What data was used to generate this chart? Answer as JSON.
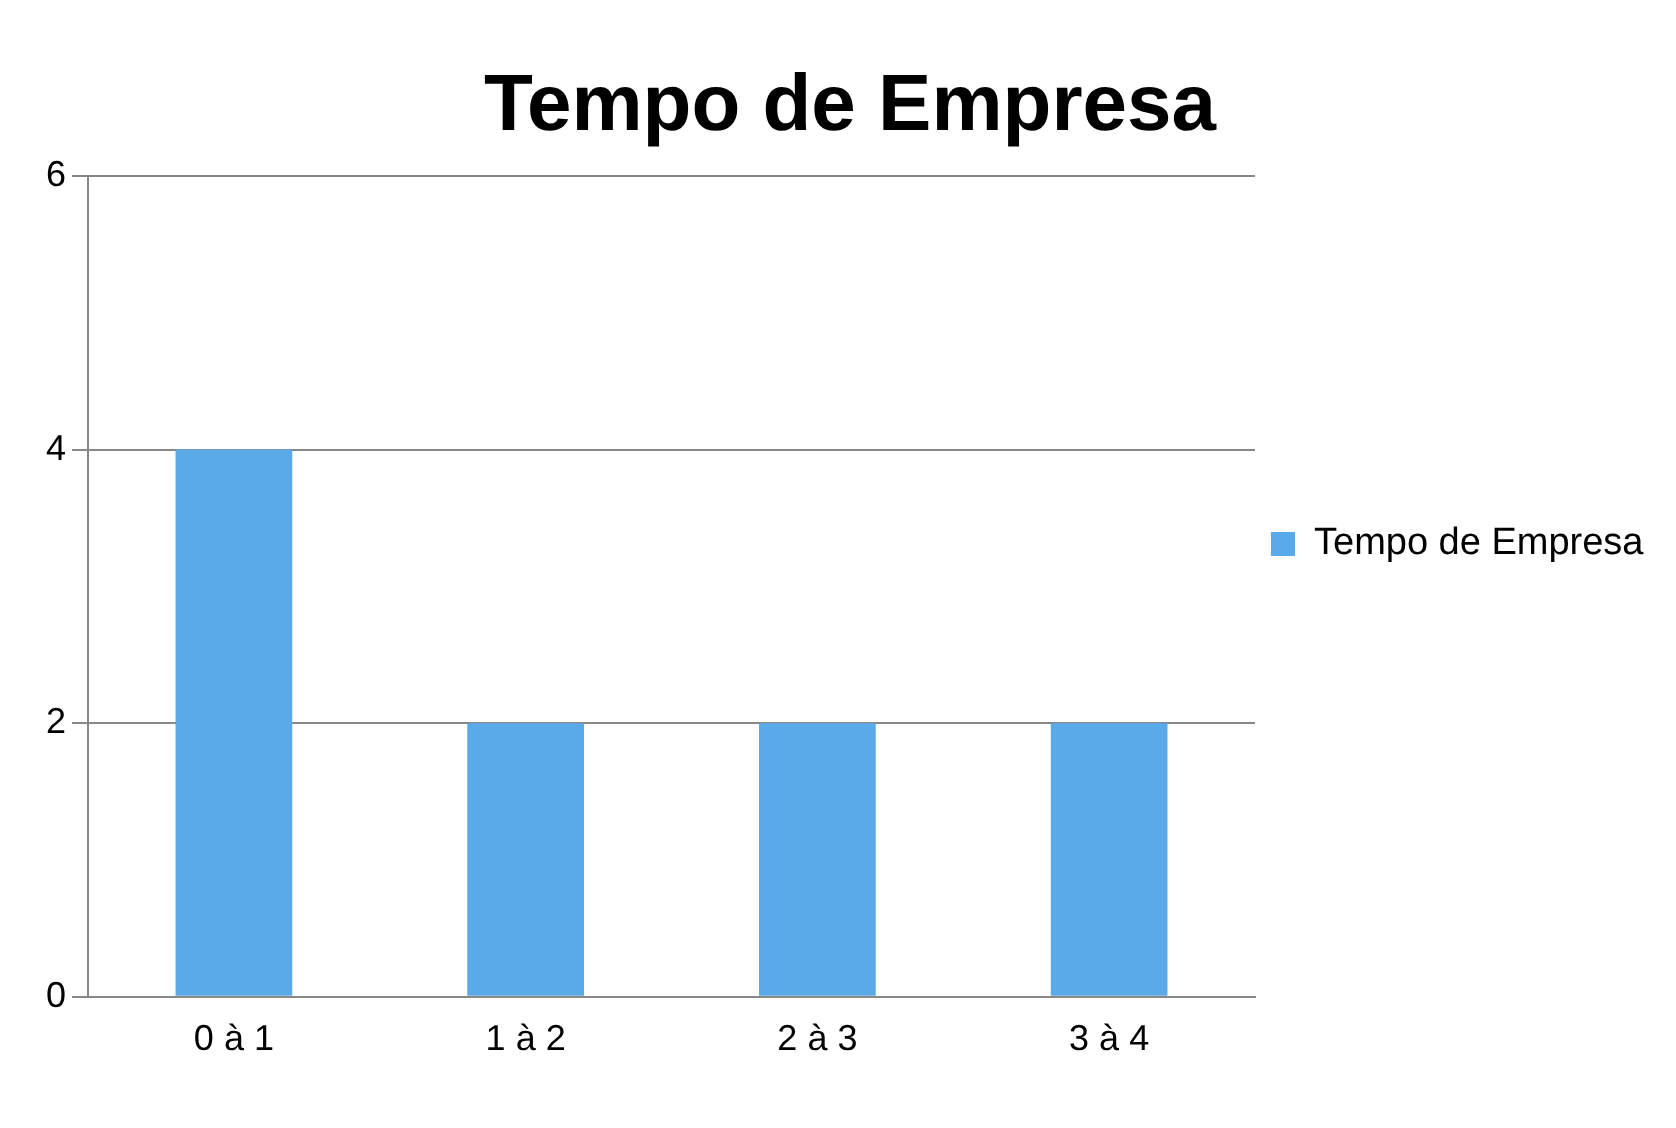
{
  "chart_data": {
    "type": "bar",
    "title": "Tempo de Empresa",
    "categories": [
      "0 à 1",
      "1 à 2",
      "2 à 3",
      "3 à 4"
    ],
    "series": [
      {
        "name": "Tempo de Empresa",
        "color": "#5aa9e8",
        "values": [
          4,
          2,
          2,
          2
        ]
      }
    ],
    "ylim": [
      0,
      6
    ],
    "yticks": [
      0,
      2,
      4,
      6
    ],
    "grid": "y",
    "legend": "right"
  }
}
